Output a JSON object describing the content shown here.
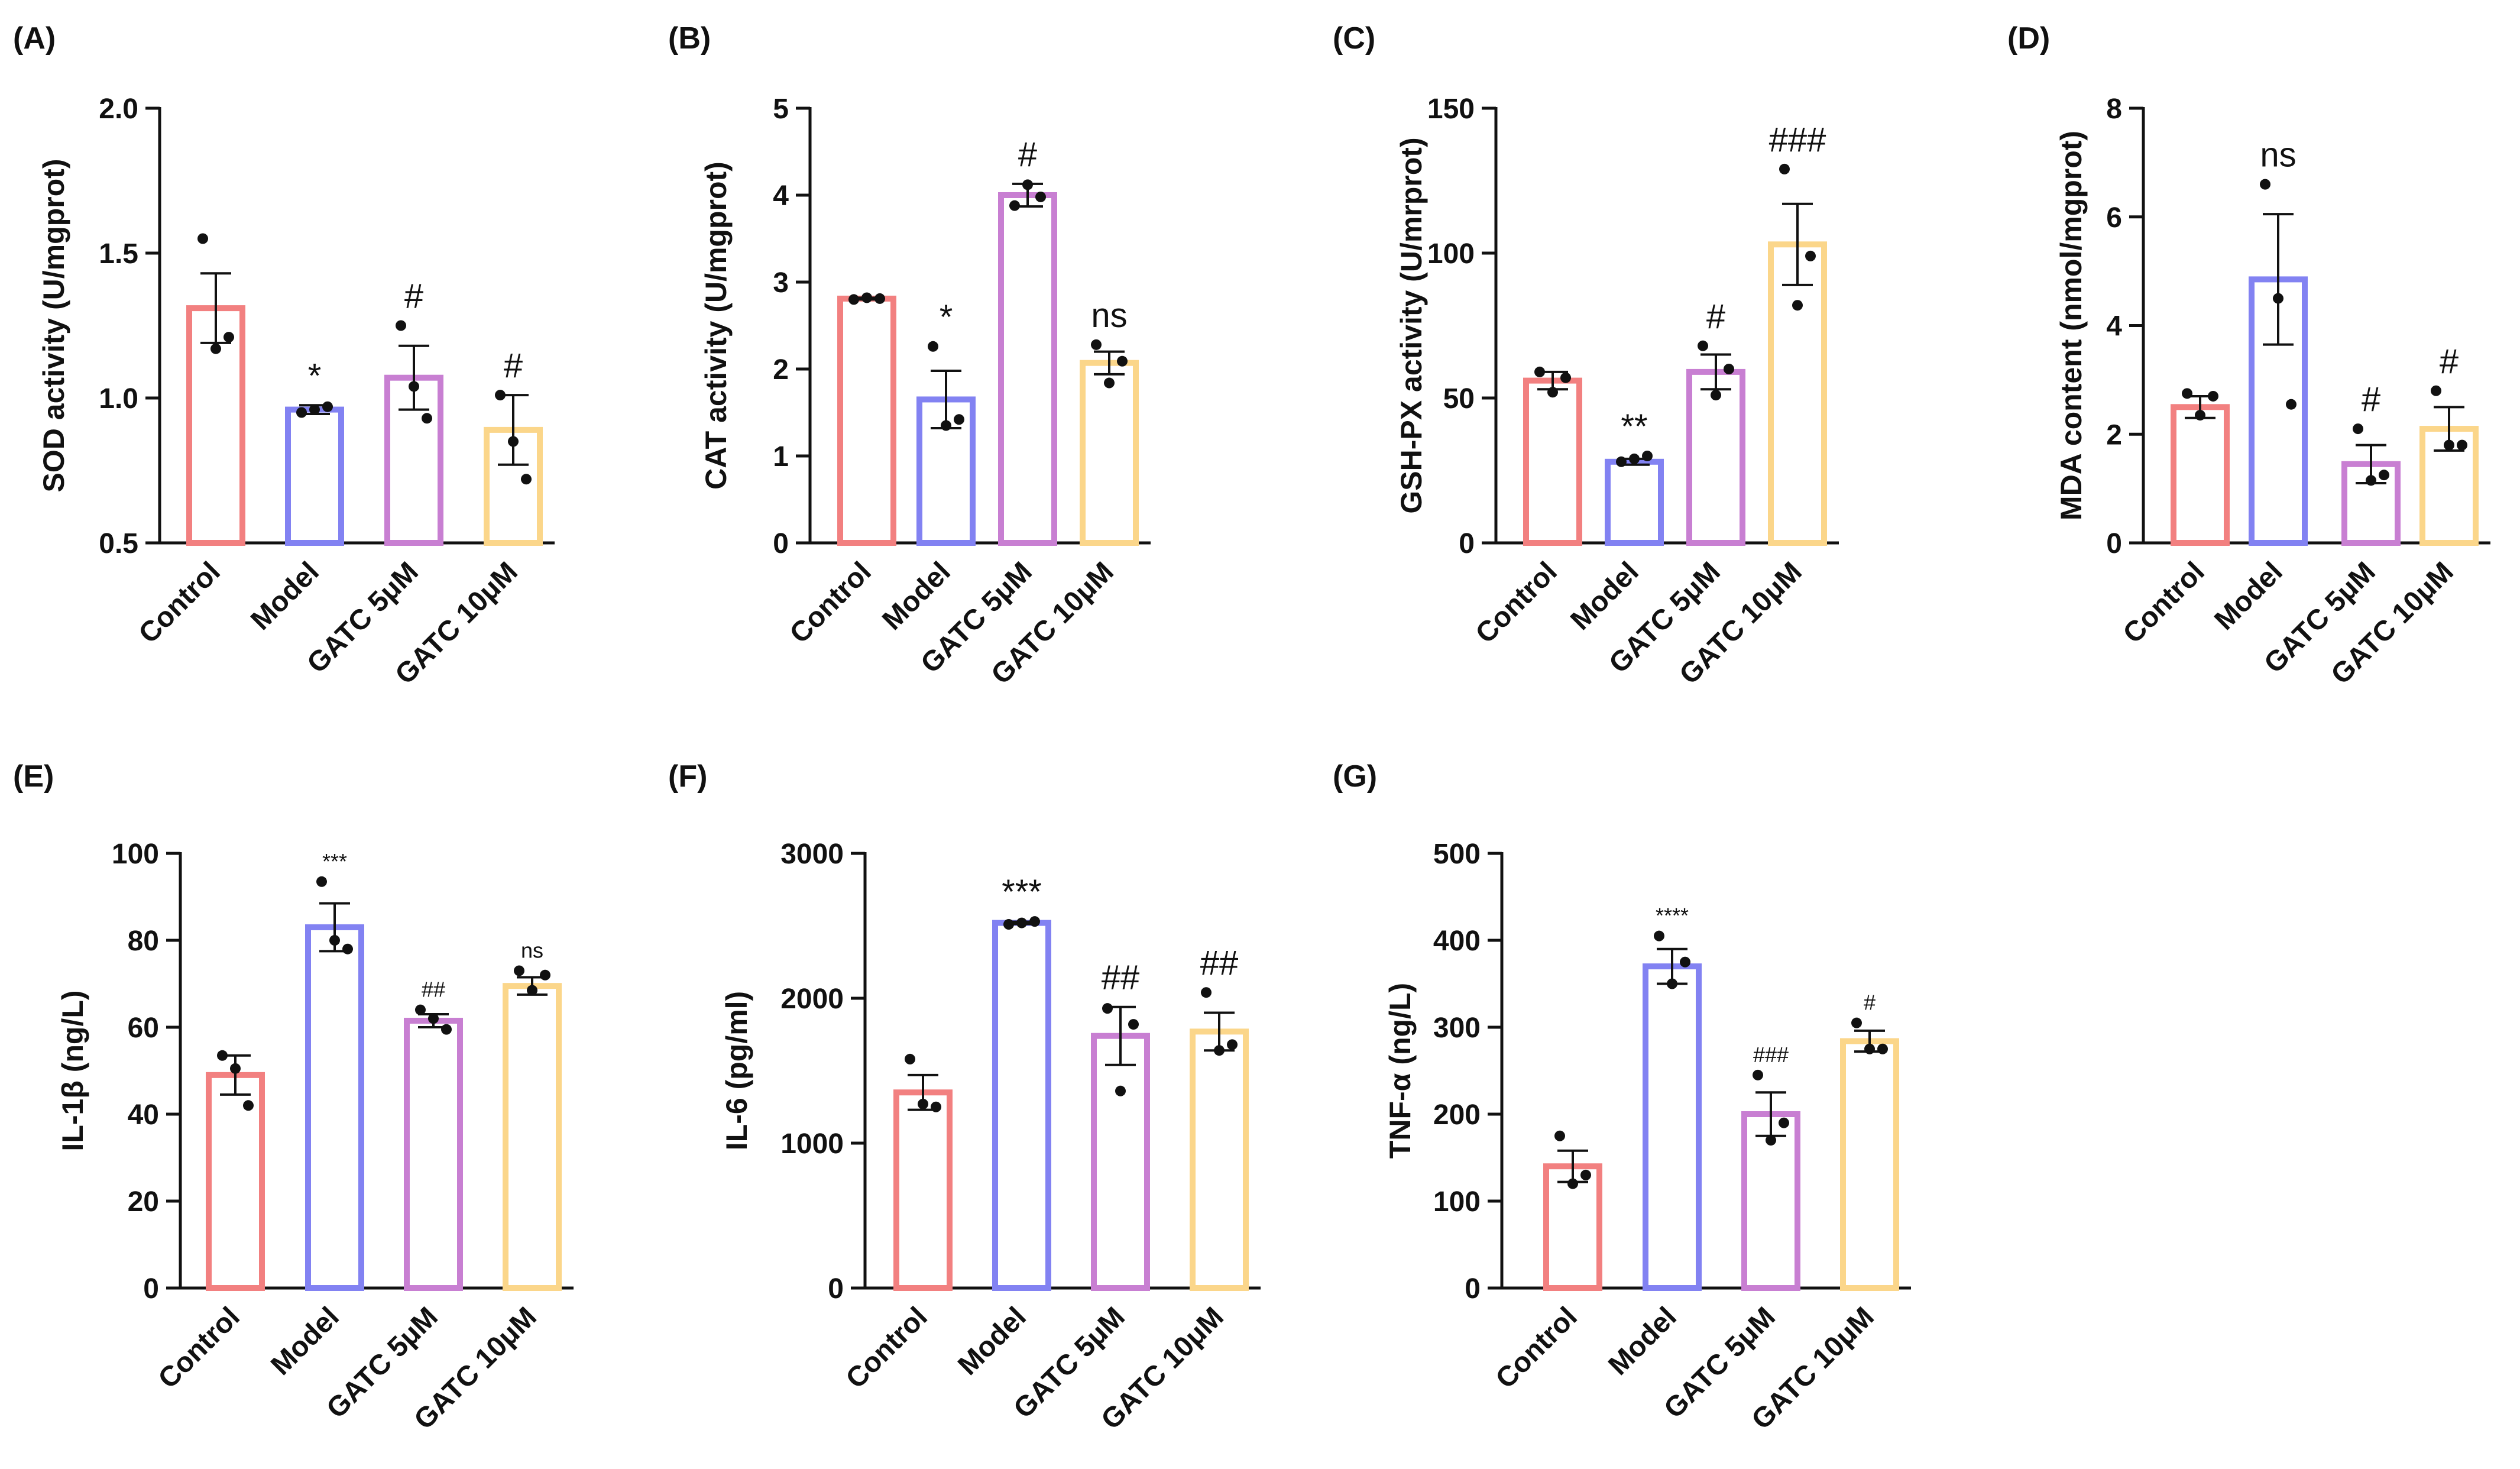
{
  "figure": {
    "categories": [
      "Control",
      "Model",
      "GATC 5μM",
      "GATC 10μM"
    ],
    "colors": [
      "#f28080",
      "#8282f2",
      "#c87fd2",
      "#fbd68a"
    ]
  },
  "chart_data": [
    {
      "type": "bar",
      "panel": "(A)",
      "ylabel": "SOD activity (U/mgprot)",
      "ylim": [
        0.5,
        2.0
      ],
      "yticks": [
        "0.5",
        "1.0",
        "1.5",
        "2.0"
      ],
      "categories": [
        "Control",
        "Model",
        "GATC 5μM",
        "GATC 10μM"
      ],
      "values": [
        1.31,
        0.96,
        1.07,
        0.89
      ],
      "sem": [
        0.12,
        0.015,
        0.11,
        0.12
      ],
      "points": [
        [
          1.55,
          1.17,
          1.21
        ],
        [
          0.95,
          0.96,
          0.97
        ],
        [
          1.25,
          1.04,
          0.93
        ],
        [
          1.01,
          0.85,
          0.72
        ]
      ],
      "significance": [
        "",
        "*",
        "#",
        "#"
      ],
      "sig_size": [
        "",
        "large",
        "large",
        "large"
      ]
    },
    {
      "type": "bar",
      "panel": "(B)",
      "ylabel": "CAT activity (U/mgprot)",
      "ylim": [
        0,
        5
      ],
      "yticks": [
        "0",
        "1",
        "2",
        "3",
        "4",
        "5"
      ],
      "categories": [
        "Control",
        "Model",
        "GATC 5μM",
        "GATC 10μM"
      ],
      "values": [
        2.81,
        1.65,
        4.0,
        2.07
      ],
      "sem": [
        0.01,
        0.33,
        0.13,
        0.13
      ],
      "points": [
        [
          2.8,
          2.82,
          2.81
        ],
        [
          2.26,
          1.35,
          1.42
        ],
        [
          3.88,
          4.12,
          3.98
        ],
        [
          2.28,
          1.84,
          2.09
        ]
      ],
      "significance": [
        "",
        "*",
        "#",
        "ns"
      ],
      "sig_size": [
        "",
        "large",
        "large",
        "large"
      ]
    },
    {
      "type": "bar",
      "panel": "(C)",
      "ylabel": "GSH-PX activity (U/mrprot)",
      "ylim": [
        0,
        150
      ],
      "yticks": [
        "0",
        "50",
        "100",
        "150"
      ],
      "categories": [
        "Control",
        "Model",
        "GATC 5μM",
        "GATC 10μM"
      ],
      "values": [
        56,
        28,
        59,
        103
      ],
      "sem": [
        3,
        1,
        6,
        14
      ],
      "points": [
        [
          59,
          52,
          57
        ],
        [
          28,
          29,
          30
        ],
        [
          68,
          51,
          60
        ],
        [
          129,
          82,
          99
        ]
      ],
      "significance": [
        "",
        "**",
        "#",
        "###"
      ],
      "sig_size": [
        "",
        "large",
        "large",
        "large"
      ]
    },
    {
      "type": "bar",
      "panel": "(D)",
      "ylabel": "MDA content (nmol/mgprot)",
      "ylim": [
        0,
        8
      ],
      "yticks": [
        "0",
        "2",
        "4",
        "6",
        "8"
      ],
      "categories": [
        "Control",
        "Model",
        "GATC 5μM",
        "GATC 10μM"
      ],
      "values": [
        2.5,
        4.85,
        1.45,
        2.1
      ],
      "sem": [
        0.2,
        1.2,
        0.35,
        0.4
      ],
      "points": [
        [
          2.75,
          2.35,
          2.7
        ],
        [
          6.6,
          4.5,
          2.55
        ],
        [
          2.1,
          1.15,
          1.25
        ],
        [
          2.8,
          1.8,
          1.8
        ]
      ],
      "significance": [
        "",
        "ns",
        "#",
        "#"
      ],
      "sig_size": [
        "",
        "large",
        "large",
        "large"
      ]
    },
    {
      "type": "bar",
      "panel": "(E)",
      "ylabel": "IL-1β (ng/L)",
      "ylim": [
        0,
        100
      ],
      "yticks": [
        "0",
        "20",
        "40",
        "60",
        "80",
        "100"
      ],
      "categories": [
        "Control",
        "Model",
        "GATC 5μM",
        "GATC 10μM"
      ],
      "values": [
        49,
        83,
        61.5,
        69.5
      ],
      "sem": [
        4.5,
        5.5,
        1.5,
        2
      ],
      "points": [
        [
          53.5,
          50.5,
          42
        ],
        [
          93.5,
          80,
          78
        ],
        [
          64,
          62,
          59.5
        ],
        [
          73,
          68.5,
          72
        ]
      ],
      "significance": [
        "",
        "***",
        "##",
        "ns"
      ],
      "sig_size": [
        "",
        "small",
        "small",
        "small"
      ]
    },
    {
      "type": "bar",
      "panel": "(F)",
      "ylabel": "IL-6 (pg/ml)",
      "ylim": [
        0,
        3000
      ],
      "yticks": [
        "0",
        "1000",
        "2000",
        "3000"
      ],
      "categories": [
        "Control",
        "Model",
        "GATC 5μM",
        "GATC 10μM"
      ],
      "values": [
        1350,
        2520,
        1740,
        1770
      ],
      "sem": [
        120,
        8,
        200,
        130
      ],
      "points": [
        [
          1580,
          1270,
          1250
        ],
        [
          2510,
          2520,
          2530
        ],
        [
          1930,
          1360,
          1820
        ],
        [
          2040,
          1640,
          1680
        ]
      ],
      "significance": [
        "",
        "***",
        "##",
        "##"
      ],
      "sig_size": [
        "",
        "large",
        "large",
        "large"
      ]
    },
    {
      "type": "bar",
      "panel": "(G)",
      "ylabel": "TNF-α (ng/L)",
      "ylim": [
        0,
        500
      ],
      "yticks": [
        "0",
        "100",
        "200",
        "300",
        "400",
        "500"
      ],
      "categories": [
        "Control",
        "Model",
        "GATC 5μM",
        "GATC 10μM"
      ],
      "values": [
        140,
        370,
        200,
        284
      ],
      "sem": [
        18,
        20,
        25,
        12
      ],
      "points": [
        [
          175,
          120,
          130
        ],
        [
          405,
          350,
          375
        ],
        [
          245,
          170,
          190
        ],
        [
          305,
          275,
          275
        ]
      ],
      "significance": [
        "",
        "****",
        "###",
        "#"
      ],
      "sig_size": [
        "",
        "small",
        "small",
        "small"
      ]
    }
  ]
}
